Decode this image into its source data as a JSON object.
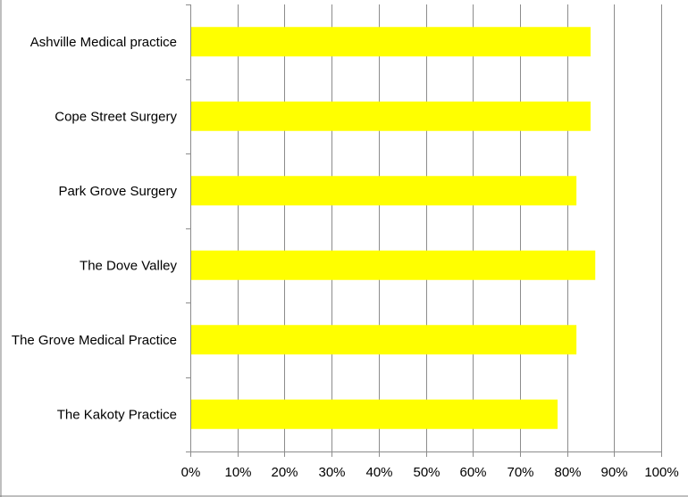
{
  "chart_data": {
    "type": "bar",
    "orientation": "horizontal",
    "categories": [
      "Ashville Medical practice",
      "Cope Street Surgery",
      "Park Grove Surgery",
      "The Dove Valley",
      "The Grove Medical Practice",
      "The Kakoty Practice"
    ],
    "values": [
      85,
      85,
      82,
      86,
      82,
      78
    ],
    "xlim": [
      0,
      100
    ],
    "x_ticks": [
      "0%",
      "10%",
      "20%",
      "30%",
      "40%",
      "50%",
      "60%",
      "70%",
      "80%",
      "90%",
      "100%"
    ],
    "grid": "vertical",
    "colors": {
      "bar": "#ffff00",
      "grid": "#8c8c8c",
      "axis": "#8c8c8c",
      "frame": "#7f7f7f"
    }
  }
}
